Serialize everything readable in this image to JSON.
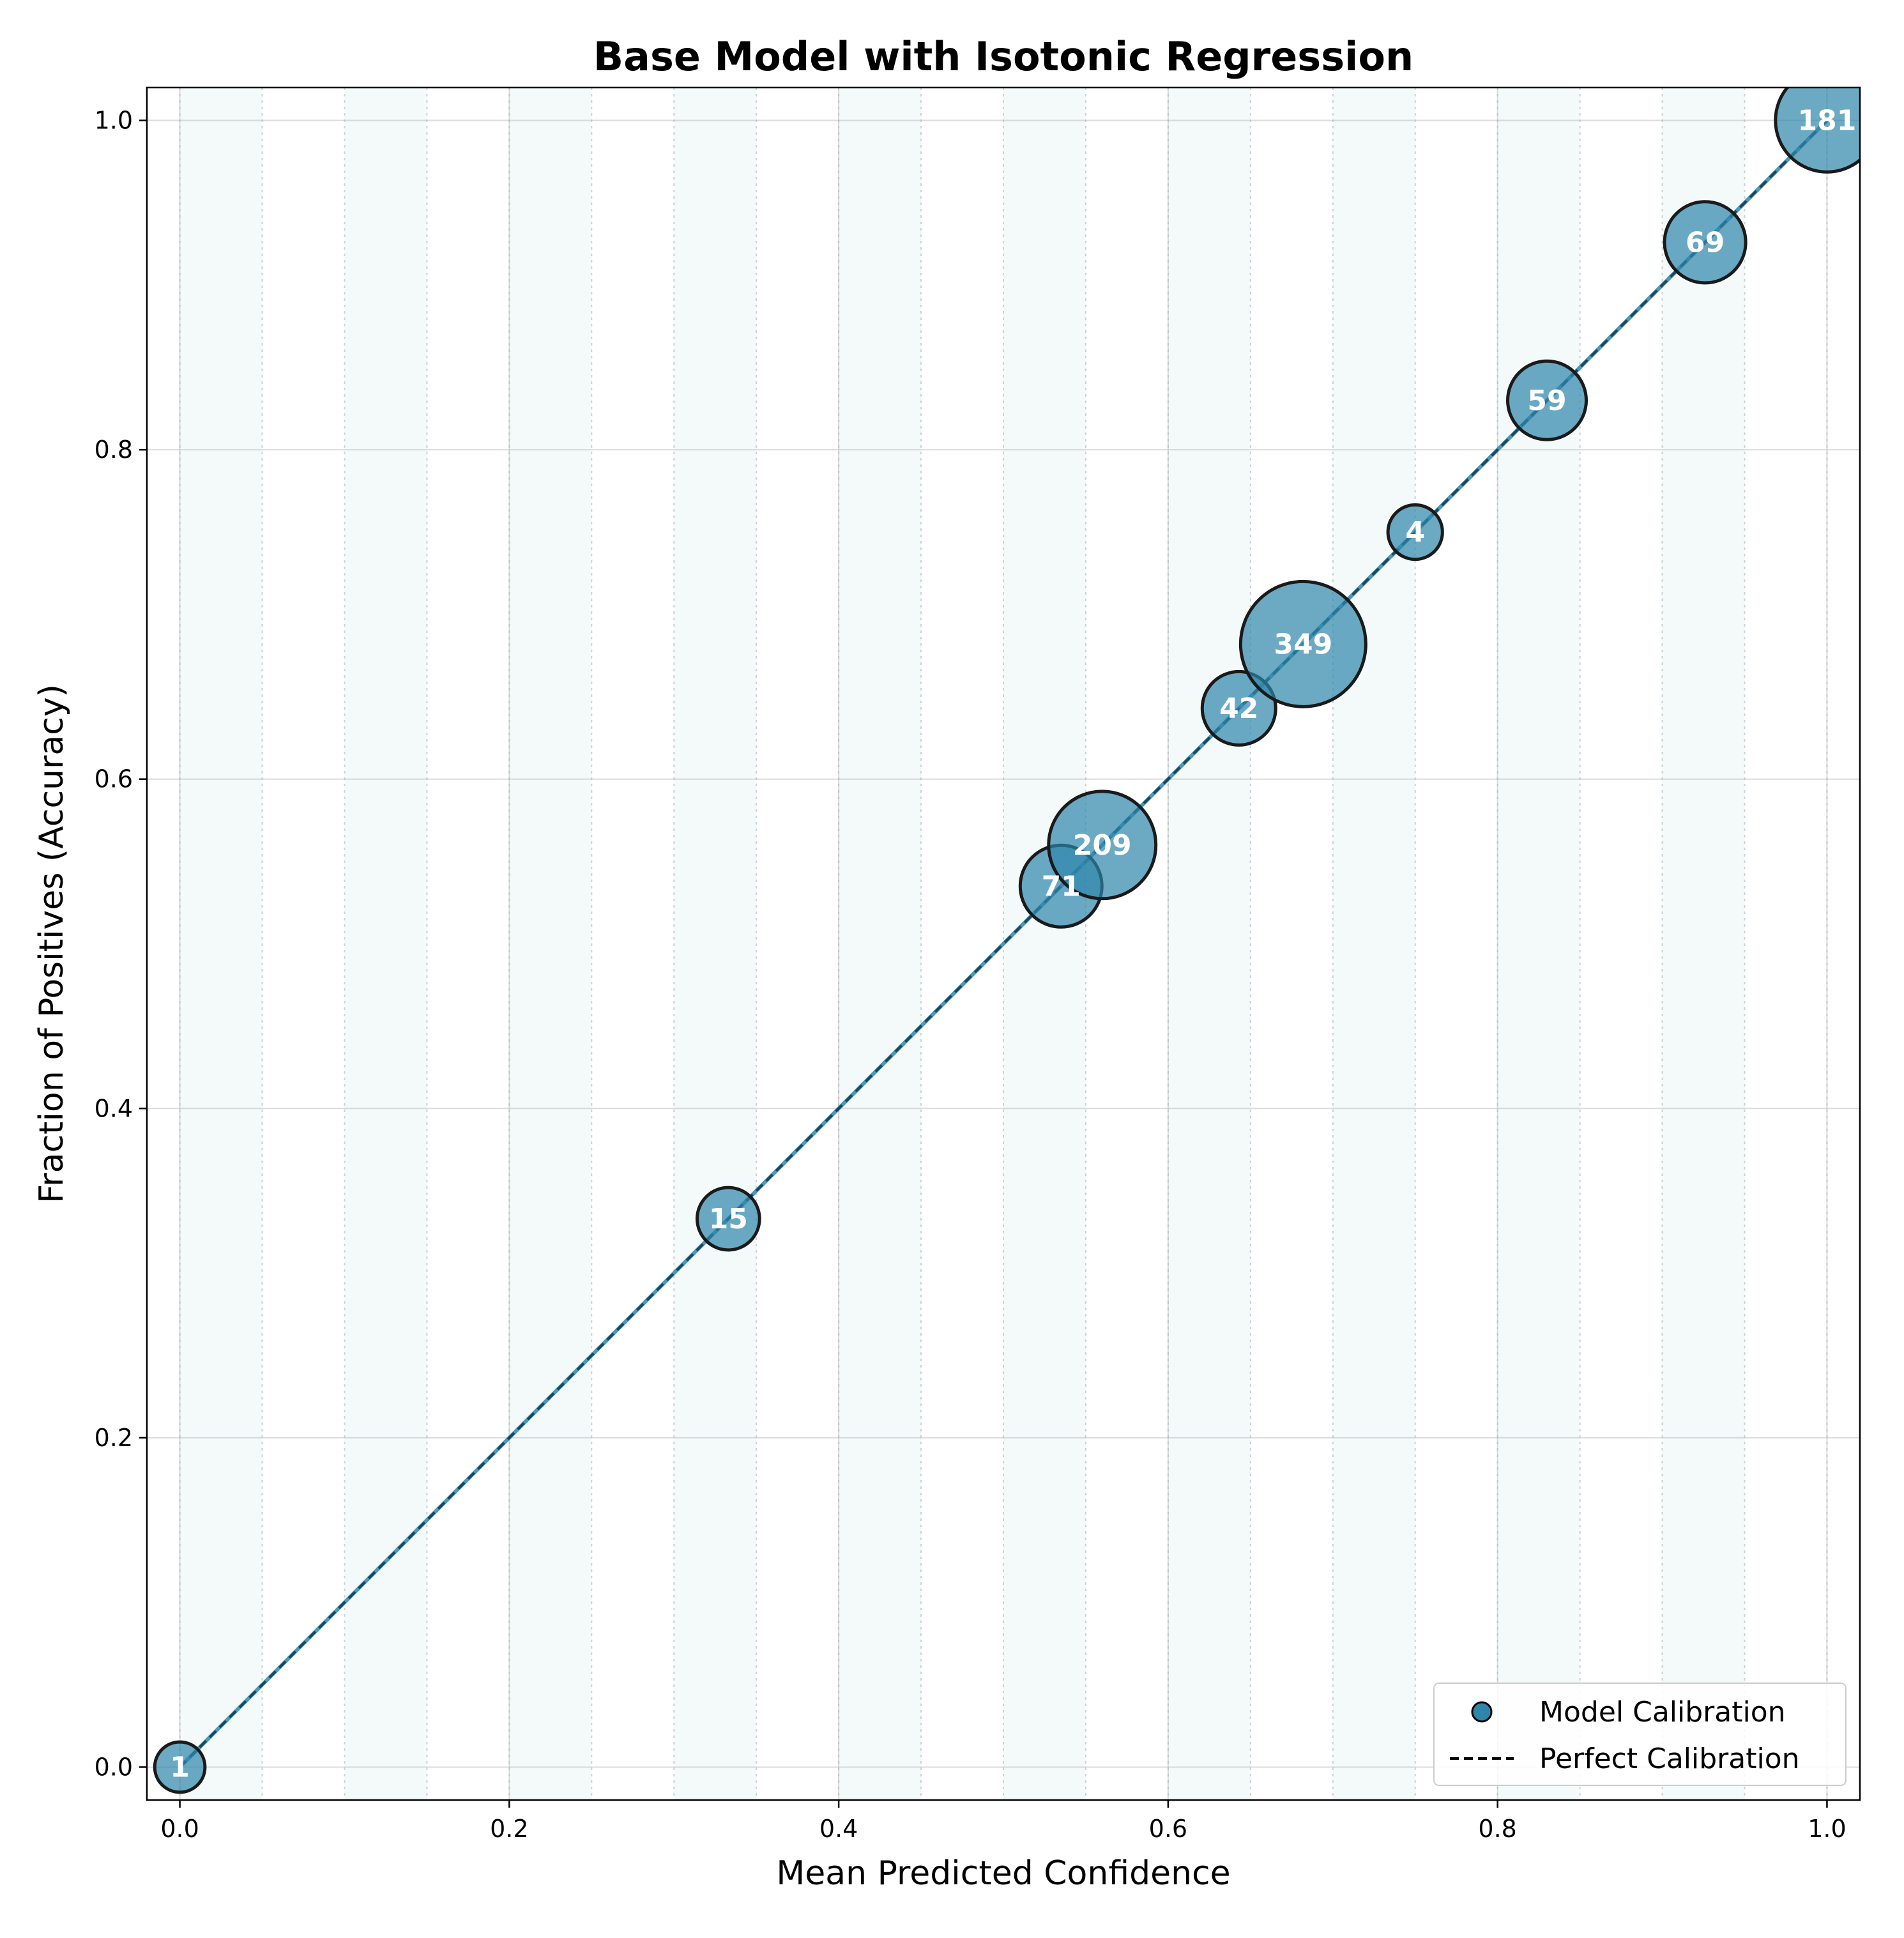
{
  "chart_data": {
    "type": "scatter",
    "title": "Base Model with Isotonic Regression",
    "xlabel": "Mean Predicted Confidence",
    "ylabel": "Fraction of Positives (Accuracy)",
    "xlim": [
      -0.02,
      1.02
    ],
    "ylim": [
      -0.02,
      1.02
    ],
    "xticks": [
      "0.0",
      "0.2",
      "0.4",
      "0.6",
      "0.8",
      "1.0"
    ],
    "yticks": [
      "0.0",
      "0.2",
      "0.4",
      "0.6",
      "0.8",
      "1.0"
    ],
    "grid": true,
    "bin_shading": "alternating bins of width 0.05",
    "legend_position": "lower-right",
    "colors": {
      "model": "#2e86ab",
      "perfect": "#000000",
      "bin_shade": "#e6f2f4"
    },
    "series": [
      {
        "name": "Model Calibration",
        "x": [
          0.0,
          0.333,
          0.535,
          0.56,
          0.643,
          0.682,
          0.75,
          0.83,
          0.926,
          1.0
        ],
        "y": [
          0.0,
          0.333,
          0.535,
          0.56,
          0.643,
          0.682,
          0.75,
          0.83,
          0.926,
          1.0
        ],
        "counts": [
          1,
          15,
          71,
          209,
          42,
          349,
          4,
          59,
          69,
          181
        ],
        "labels": [
          "1",
          "15",
          "71",
          "209",
          "42",
          "349",
          "4",
          "59",
          "69",
          "181"
        ]
      },
      {
        "name": "Perfect Calibration",
        "x": [
          0,
          1
        ],
        "y": [
          0,
          1
        ]
      }
    ]
  }
}
